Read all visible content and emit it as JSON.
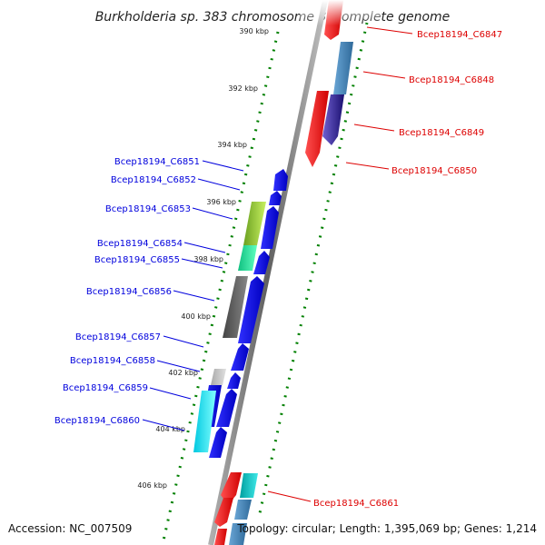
{
  "title": "Burkholderia sp. 383 chromosome 3, complete genome",
  "footer": {
    "accession": "Accession: NC_007509",
    "summary": "Topology: circular; Length: 1,395,069 bp; Genes: 1,214"
  },
  "chart_data": {
    "type": "genome-map",
    "strand_colors": {
      "forward_labels": "#0000dd",
      "reverse_labels": "#dd0000"
    },
    "ticks": [
      "390 kbp",
      "392 kbp",
      "394 kbp",
      "396 kbp",
      "398 kbp",
      "400 kbp",
      "402 kbp",
      "404 kbp",
      "406 kbp"
    ],
    "genes": [
      {
        "name": "Bcep18194_C6847",
        "strand": "reverse",
        "color": "#ff2020"
      },
      {
        "name": "Bcep18194_C6848",
        "strand": "reverse",
        "color": "#4682b4"
      },
      {
        "name": "Bcep18194_C6849",
        "strand": "reverse",
        "color": "#3a2a9a"
      },
      {
        "name": "Bcep18194_C6850",
        "strand": "reverse",
        "color": "#ff2020"
      },
      {
        "name": "Bcep18194_C6851",
        "strand": "forward",
        "color": "#1010ee"
      },
      {
        "name": "Bcep18194_C6852",
        "strand": "forward",
        "color": "#1010ee"
      },
      {
        "name": "Bcep18194_C6853",
        "strand": "forward",
        "color": "#8cc63f"
      },
      {
        "name": "Bcep18194_C6854",
        "strand": "forward",
        "color": "#2ee8a0"
      },
      {
        "name": "Bcep18194_C6855",
        "strand": "forward",
        "color": "#1010ee"
      },
      {
        "name": "Bcep18194_C6856",
        "strand": "forward",
        "color": "#666666"
      },
      {
        "name": "Bcep18194_C6857",
        "strand": "forward",
        "color": "#1010ee"
      },
      {
        "name": "Bcep18194_C6858",
        "strand": "forward",
        "color": "#c0c0c0"
      },
      {
        "name": "Bcep18194_C6859",
        "strand": "forward",
        "color": "#1010ee"
      },
      {
        "name": "Bcep18194_C6860",
        "strand": "forward",
        "color": "#10e0f0"
      },
      {
        "name": "Bcep18194_C6861",
        "strand": "reverse",
        "color": "#ff2020"
      }
    ]
  }
}
